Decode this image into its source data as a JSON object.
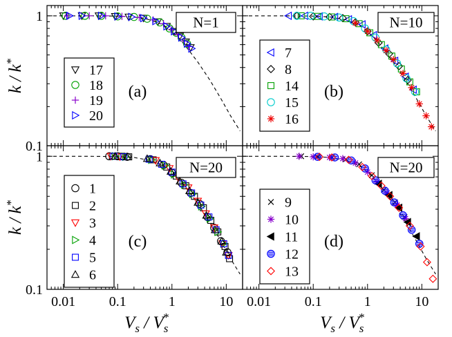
{
  "figure": {
    "ylabel_main": "k / k",
    "ylabel_sup": "*",
    "xlabel_main": "V",
    "xlabel_sub": "s",
    "xlabel_slash": " / ",
    "xlabel_sup": "*"
  },
  "axes": {
    "x_type": "log",
    "y_type": "log",
    "xlim": [
      0.005,
      20
    ],
    "ylim": [
      0.1,
      1.2
    ],
    "x_tick_values": [
      0.01,
      0.1,
      1,
      10
    ],
    "x_tick_labels": [
      "0.01",
      "0.1",
      "1",
      "10"
    ],
    "y_tick_values": [
      0.1,
      1
    ],
    "y_tick_labels": [
      "0.1",
      "1"
    ]
  },
  "chart_data": [
    {
      "type": "scatter",
      "panel": "a",
      "title": "N=1",
      "annotation": "(a)",
      "reference_curve": {
        "style": "dashed",
        "x": [
          0.005,
          0.01,
          0.03,
          0.1,
          0.2,
          0.4,
          0.7,
          1,
          1.5,
          2,
          3,
          5,
          8,
          12,
          18
        ],
        "y": [
          1.0,
          1.0,
          1.0,
          0.995,
          0.98,
          0.93,
          0.85,
          0.76,
          0.64,
          0.55,
          0.44,
          0.32,
          0.23,
          0.17,
          0.13
        ]
      },
      "series": [
        {
          "name": "17",
          "marker": "triangle-down",
          "color": "#000000",
          "x": [
            0.01,
            0.022,
            0.045,
            0.09,
            0.16,
            0.3,
            0.55,
            0.8,
            1.1,
            1.4,
            1.8,
            2.2
          ],
          "y": [
            1.0,
            1.0,
            1.0,
            0.99,
            0.98,
            0.96,
            0.9,
            0.83,
            0.76,
            0.7,
            0.63,
            0.57
          ]
        },
        {
          "name": "18",
          "marker": "circle",
          "color": "#00a000",
          "x": [
            0.011,
            0.025,
            0.05,
            0.1,
            0.2,
            0.35,
            0.6,
            0.9,
            1.2,
            1.5,
            1.9
          ],
          "y": [
            1.0,
            1.0,
            1.0,
            0.99,
            0.98,
            0.95,
            0.89,
            0.8,
            0.74,
            0.68,
            0.61
          ]
        },
        {
          "name": "19",
          "marker": "plus",
          "color": "#8800cc",
          "x": [
            0.012,
            0.03,
            0.06,
            0.12,
            0.25,
            0.45,
            0.7,
            1.0,
            1.3,
            1.7,
            2.1
          ],
          "y": [
            1.0,
            1.0,
            1.0,
            0.99,
            0.97,
            0.93,
            0.87,
            0.78,
            0.72,
            0.64,
            0.58
          ]
        },
        {
          "name": "20",
          "marker": "triangle-right",
          "color": "#0000ff",
          "x": [
            0.013,
            0.022,
            0.05,
            0.1,
            0.18,
            0.3,
            0.5,
            0.8,
            1.1,
            1.5,
            1.9,
            2.3
          ],
          "y": [
            1.0,
            1.0,
            1.0,
            0.99,
            0.98,
            0.96,
            0.91,
            0.83,
            0.76,
            0.68,
            0.61,
            0.56
          ]
        }
      ]
    },
    {
      "type": "scatter",
      "panel": "b",
      "title": "N=10",
      "annotation": "(b)",
      "reference_curve": {
        "style": "dashed",
        "x": [
          0.005,
          0.01,
          0.03,
          0.1,
          0.2,
          0.4,
          0.7,
          1,
          1.5,
          2,
          3,
          5,
          8,
          12,
          18
        ],
        "y": [
          1.0,
          1.0,
          1.0,
          0.995,
          0.98,
          0.93,
          0.85,
          0.76,
          0.64,
          0.55,
          0.44,
          0.32,
          0.23,
          0.17,
          0.13
        ]
      },
      "series": [
        {
          "name": "7",
          "marker": "triangle-left",
          "color": "#0000ff",
          "x": [
            0.035,
            0.07,
            0.13,
            0.25,
            0.45,
            0.8,
            1.3,
            2.1,
            3.2,
            5.0,
            7.0
          ],
          "y": [
            1.0,
            1.0,
            0.99,
            0.98,
            0.94,
            0.86,
            0.71,
            0.56,
            0.45,
            0.34,
            0.27
          ]
        },
        {
          "name": "8",
          "marker": "diamond",
          "color": "#000000",
          "x": [
            0.05,
            0.1,
            0.2,
            0.35,
            0.6,
            1.0,
            1.6,
            2.5,
            3.8,
            5.5
          ],
          "y": [
            1.0,
            0.99,
            0.98,
            0.96,
            0.89,
            0.76,
            0.62,
            0.51,
            0.41,
            0.32
          ]
        },
        {
          "name": "14",
          "marker": "square",
          "color": "#00a000",
          "x": [
            0.06,
            0.12,
            0.22,
            0.4,
            0.7,
            1.1,
            1.8,
            2.8,
            4.2,
            6.0,
            8.0
          ],
          "y": [
            1.0,
            0.99,
            0.98,
            0.95,
            0.87,
            0.74,
            0.6,
            0.49,
            0.39,
            0.31,
            0.26
          ]
        },
        {
          "name": "15",
          "marker": "circle",
          "color": "#00cccc",
          "x": [
            0.05,
            0.09,
            0.16,
            0.3,
            0.55,
            0.9,
            1.4,
            2.2,
            3.5,
            5.2,
            7.5
          ],
          "y": [
            1.0,
            1.0,
            0.99,
            0.97,
            0.91,
            0.8,
            0.68,
            0.55,
            0.43,
            0.33,
            0.26
          ]
        },
        {
          "name": "16",
          "marker": "asterisk",
          "color": "#ee0000",
          "x": [
            0.6,
            1.0,
            1.5,
            2.2,
            3.0,
            4.5,
            6.5,
            9.0,
            12.0,
            15.0
          ],
          "y": [
            0.88,
            0.76,
            0.65,
            0.54,
            0.46,
            0.36,
            0.28,
            0.21,
            0.17,
            0.14
          ]
        }
      ]
    },
    {
      "type": "scatter",
      "panel": "c",
      "title": "N=20",
      "annotation": "(c)",
      "reference_curve": {
        "style": "dashed",
        "x": [
          0.005,
          0.01,
          0.03,
          0.1,
          0.2,
          0.4,
          0.7,
          1,
          1.5,
          2,
          3,
          5,
          8,
          12,
          18
        ],
        "y": [
          1.0,
          1.0,
          1.0,
          0.995,
          0.98,
          0.93,
          0.85,
          0.76,
          0.64,
          0.55,
          0.44,
          0.32,
          0.23,
          0.17,
          0.13
        ]
      },
      "series": [
        {
          "name": "1",
          "marker": "circle",
          "color": "#000000",
          "x": [
            0.07,
            0.1,
            0.15,
            0.4,
            0.7,
            1.0,
            1.5,
            2.2,
            3.2,
            4.5,
            6.0,
            8.0,
            10.5
          ],
          "y": [
            1.0,
            1.0,
            0.99,
            0.95,
            0.86,
            0.75,
            0.63,
            0.53,
            0.44,
            0.35,
            0.29,
            0.23,
            0.19
          ]
        },
        {
          "name": "2",
          "marker": "square",
          "color": "#000000",
          "x": [
            0.08,
            0.12,
            0.16,
            0.45,
            0.8,
            1.2,
            1.8,
            2.6,
            3.8,
            5.2,
            7.0,
            9.5,
            11.5
          ],
          "y": [
            1.0,
            1.0,
            0.99,
            0.94,
            0.83,
            0.71,
            0.6,
            0.5,
            0.41,
            0.33,
            0.27,
            0.21,
            0.17
          ]
        },
        {
          "name": "3",
          "marker": "triangle-down",
          "color": "#ff0000",
          "x": [
            0.075,
            0.11,
            0.5,
            0.9,
            1.3,
            2.0,
            3.0,
            4.2,
            6.0,
            8.5,
            11.0
          ],
          "y": [
            1.0,
            0.99,
            0.93,
            0.81,
            0.69,
            0.58,
            0.46,
            0.37,
            0.29,
            0.22,
            0.18
          ]
        },
        {
          "name": "4",
          "marker": "triangle-right",
          "color": "#00a000",
          "x": [
            0.09,
            0.14,
            0.42,
            0.75,
            1.1,
            1.7,
            2.4,
            3.5,
            5.0,
            7.0,
            9.0
          ],
          "y": [
            1.0,
            0.99,
            0.94,
            0.85,
            0.73,
            0.61,
            0.52,
            0.42,
            0.34,
            0.27,
            0.22
          ]
        },
        {
          "name": "5",
          "marker": "square",
          "color": "#0000ff",
          "x": [
            0.085,
            0.13,
            0.38,
            0.65,
            1.0,
            1.6,
            2.3,
            3.4,
            4.8,
            6.5,
            9.0,
            11.0
          ],
          "y": [
            1.0,
            0.99,
            0.95,
            0.87,
            0.76,
            0.62,
            0.53,
            0.43,
            0.35,
            0.28,
            0.22,
            0.18
          ]
        },
        {
          "name": "6",
          "marker": "triangle-up",
          "color": "#000000",
          "x": [
            0.09,
            0.15,
            0.35,
            0.6,
            0.95,
            1.4,
            2.1,
            3.0,
            4.3,
            6.2,
            8.2,
            10.0
          ],
          "y": [
            1.0,
            0.99,
            0.96,
            0.89,
            0.77,
            0.65,
            0.55,
            0.45,
            0.36,
            0.28,
            0.23,
            0.19
          ]
        }
      ]
    },
    {
      "type": "scatter",
      "panel": "d",
      "title": "N=20",
      "annotation": "(d)",
      "reference_curve": {
        "style": "dashed",
        "x": [
          0.005,
          0.01,
          0.03,
          0.1,
          0.2,
          0.4,
          0.7,
          1,
          1.5,
          2,
          3,
          5,
          8,
          12,
          18
        ],
        "y": [
          1.0,
          1.0,
          1.0,
          0.995,
          0.98,
          0.93,
          0.85,
          0.76,
          0.64,
          0.55,
          0.44,
          0.32,
          0.23,
          0.17,
          0.13
        ]
      },
      "series": [
        {
          "name": "9",
          "marker": "x",
          "color": "#000000",
          "x": [
            0.06,
            0.12,
            0.22,
            0.4,
            0.7,
            1.2,
            2.0,
            3.2,
            4.8
          ],
          "y": [
            1.0,
            0.99,
            0.98,
            0.95,
            0.87,
            0.72,
            0.56,
            0.45,
            0.35
          ]
        },
        {
          "name": "10",
          "marker": "asterisk",
          "color": "#8800cc",
          "x": [
            0.055,
            0.1,
            0.2,
            0.35,
            0.6,
            1.0,
            1.5,
            2.3,
            3.5,
            5.0
          ],
          "y": [
            1.0,
            0.99,
            0.98,
            0.96,
            0.89,
            0.76,
            0.64,
            0.53,
            0.43,
            0.34
          ]
        },
        {
          "name": "11",
          "marker": "triangle-left-filled",
          "color": "#000000",
          "x": [
            1.6,
            2.5,
            3.8,
            5.5,
            8.0
          ],
          "y": [
            0.62,
            0.51,
            0.41,
            0.32,
            0.25
          ]
        },
        {
          "name": "12",
          "marker": "circle-hatched",
          "color": "#0000ff",
          "x": [
            0.12,
            0.25,
            0.5,
            0.9,
            1.4,
            2.1,
            3.1,
            4.5,
            6.5,
            9.0
          ],
          "y": [
            0.99,
            0.98,
            0.93,
            0.81,
            0.66,
            0.55,
            0.45,
            0.36,
            0.28,
            0.22
          ]
        },
        {
          "name": "13",
          "marker": "diamond",
          "color": "#ff0000",
          "x": [
            0.13,
            0.22,
            0.45,
            0.8,
            1.2,
            1.8,
            2.6,
            3.8,
            6.0,
            9.5,
            12.5,
            16.0
          ],
          "y": [
            0.99,
            0.98,
            0.94,
            0.83,
            0.71,
            0.6,
            0.5,
            0.41,
            0.3,
            0.21,
            0.16,
            0.12
          ]
        }
      ]
    }
  ]
}
